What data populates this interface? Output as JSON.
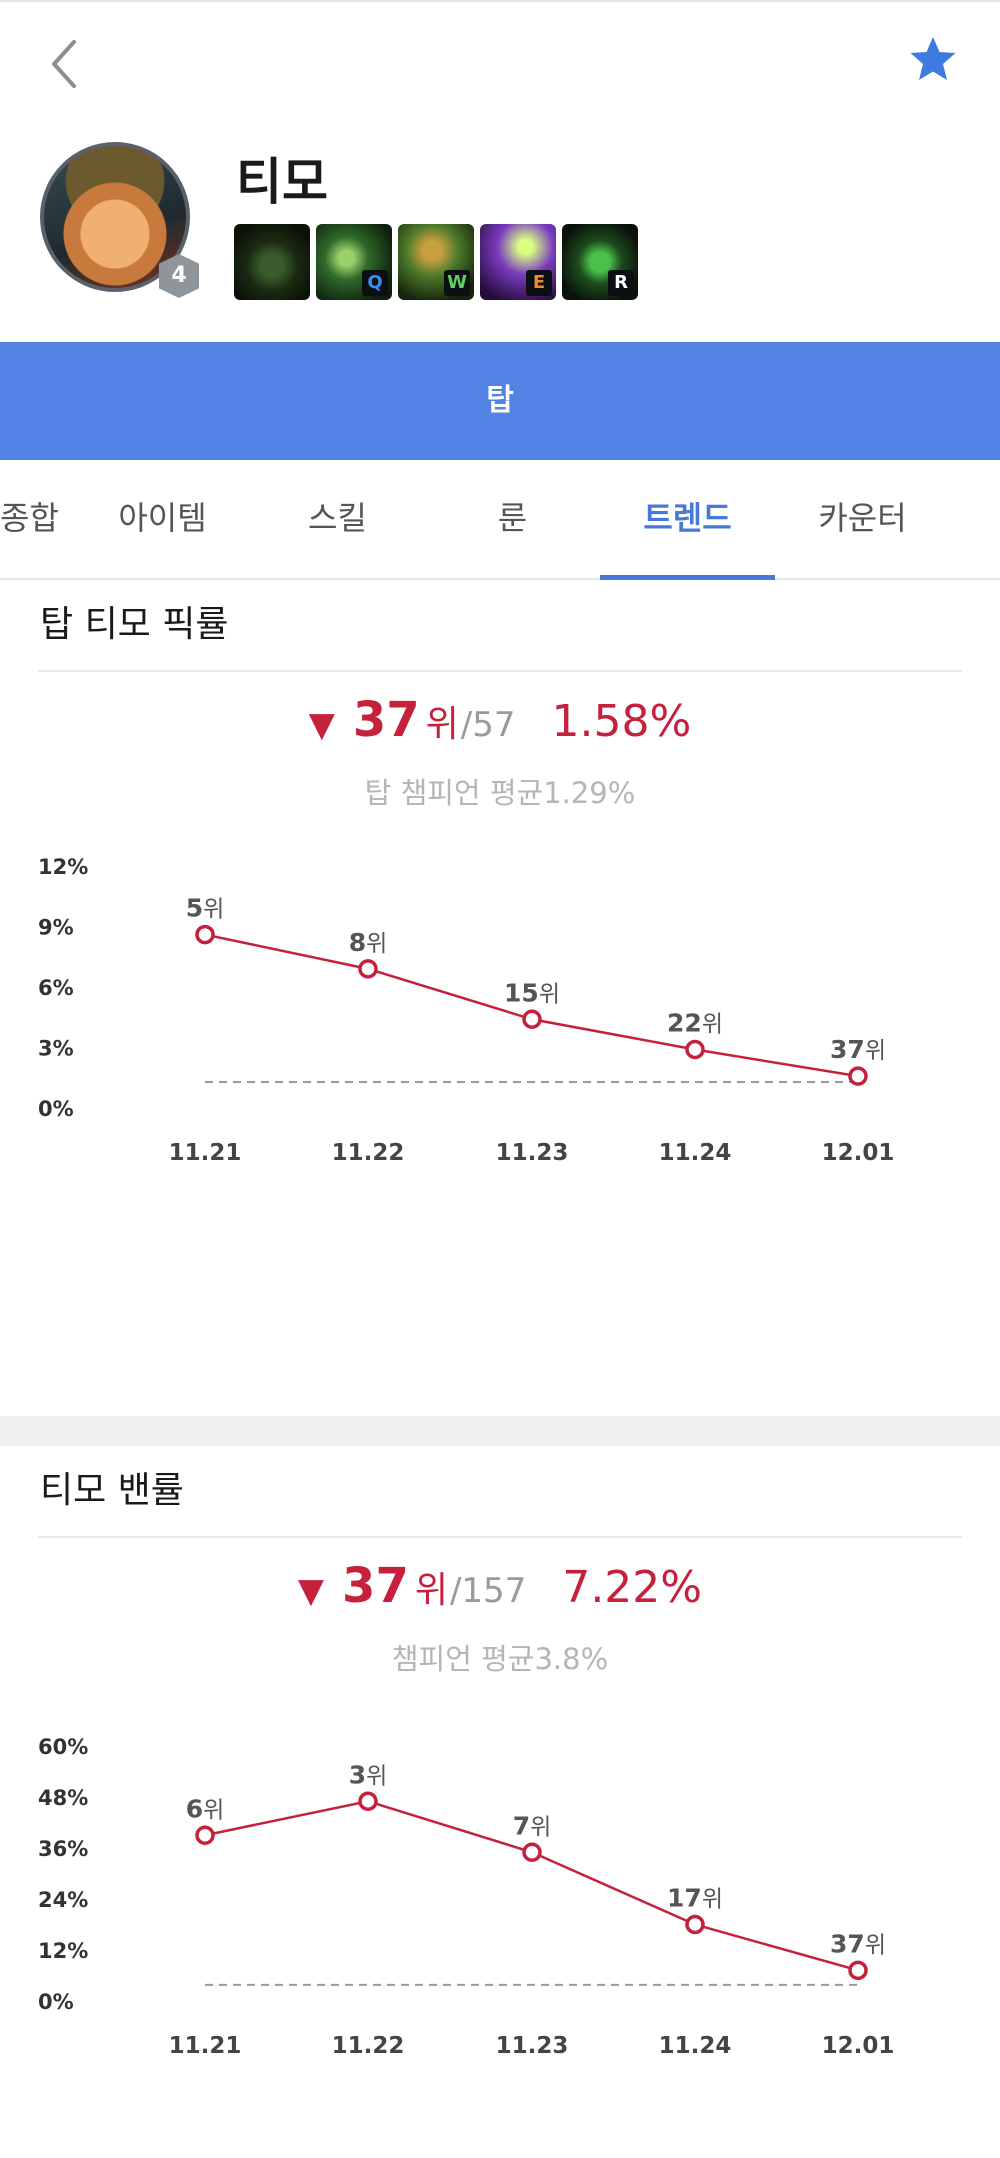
{
  "header": {
    "back_icon": "chevron-left-icon",
    "favorite_icon": "star-icon",
    "accent": "#3d7be0"
  },
  "champion": {
    "name": "티모",
    "level": "4",
    "skills": [
      {
        "key": "",
        "icon": "passive-skill-icon"
      },
      {
        "key": "Q",
        "icon": "q-skill-icon",
        "key_color": "#3a8fe8"
      },
      {
        "key": "W",
        "icon": "w-skill-icon",
        "key_color": "#5fd05a"
      },
      {
        "key": "E",
        "icon": "e-skill-icon",
        "key_color": "#f08a2a"
      },
      {
        "key": "R",
        "icon": "r-skill-icon",
        "key_color": "#ffffff"
      }
    ]
  },
  "lane": {
    "label": "탑",
    "color": "#5483e6"
  },
  "tabs": [
    "종합",
    "아이템",
    "스킬",
    "룬",
    "트렌드",
    "카운터"
  ],
  "active_tab": "트렌드",
  "pick_rate": {
    "title": "탑 티모 픽률",
    "rank": "37",
    "rank_unit": "위",
    "rank_total": "/57",
    "value": "1.58%",
    "average": "탑 챔피언 평균1.29%",
    "trend": "down"
  },
  "ban_rate": {
    "title": "티모 밴률",
    "rank": "37",
    "rank_unit": "위",
    "rank_total": "/157",
    "value": "7.22%",
    "average": "챔피언 평균3.8%",
    "trend": "down"
  },
  "chart_data": [
    {
      "type": "line",
      "title": "탑 티모 픽률",
      "x": [
        "11.21",
        "11.22",
        "11.23",
        "11.24",
        "12.01"
      ],
      "y_ticks": [
        "0%",
        "3%",
        "6%",
        "9%",
        "12%"
      ],
      "ylim": [
        0,
        12
      ],
      "series": [
        {
          "values": [
            8.6,
            6.9,
            4.4,
            2.9,
            1.58
          ],
          "labels": [
            "5위",
            "8위",
            "15위",
            "22위",
            "37위"
          ]
        }
      ],
      "reference_line": 1.29,
      "line_color": "#c5203c",
      "reference_color": "#9a9a9a"
    },
    {
      "type": "line",
      "title": "티모 밴률",
      "x": [
        "11.21",
        "11.22",
        "11.23",
        "11.24",
        "12.01"
      ],
      "y_ticks": [
        "0%",
        "12%",
        "24%",
        "36%",
        "48%",
        "60%"
      ],
      "ylim": [
        0,
        60
      ],
      "series": [
        {
          "values": [
            39,
            47,
            35,
            18,
            7.22
          ],
          "labels": [
            "6위",
            "3위",
            "7위",
            "17위",
            "37위"
          ]
        }
      ],
      "reference_line": 3.8,
      "line_color": "#c5203c",
      "reference_color": "#9a9a9a"
    }
  ]
}
